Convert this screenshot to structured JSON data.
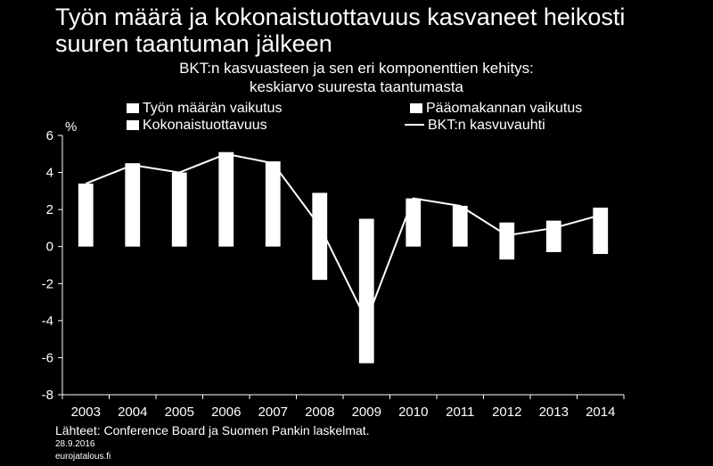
{
  "title_line1": "Työn määrä ja kokonaistuottavuus kasvaneet heikosti",
  "title_line2": "suuren taantuman jälkeen",
  "subtitle_line1": "BKT:n kasvuasteen ja sen eri komponenttien kehitys:",
  "subtitle_line2": "keskiarvo suuresta taantumasta",
  "legend": {
    "labor": "Työn määrän vaikutus",
    "capital": "Pääomakannan vaikutus",
    "tfp": "Kokonaistuottavuus",
    "gdp": "BKT:n kasvuvauhti"
  },
  "footer": {
    "source": "Lähteet: Conference Board ja Suomen Pankin laskelmat.",
    "date": "28.9.2016",
    "site": "eurojatalous.fi"
  },
  "colors": {
    "background": "#000000",
    "foreground": "#ffffff"
  },
  "chart_data": {
    "type": "bar",
    "ylabel": "%",
    "ylim": [
      -8,
      6
    ],
    "yticks": [
      -8,
      -6,
      -4,
      -2,
      0,
      2,
      4,
      6
    ],
    "grid": false,
    "legend_position": "top",
    "categories": [
      "2003",
      "2004",
      "2005",
      "2006",
      "2007",
      "2008",
      "2009",
      "2010",
      "2011",
      "2012",
      "2013",
      "2014"
    ],
    "bar_ranges": [
      [
        0,
        3.4
      ],
      [
        0,
        4.5
      ],
      [
        0,
        4.0
      ],
      [
        0,
        5.1
      ],
      [
        0,
        4.6
      ],
      [
        -1.8,
        2.9
      ],
      [
        -6.3,
        1.5
      ],
      [
        0,
        2.6
      ],
      [
        0,
        2.2
      ],
      [
        -0.7,
        1.3
      ],
      [
        -0.3,
        1.4
      ],
      [
        -0.4,
        2.1
      ]
    ],
    "series": [
      {
        "name": "BKT:n kasvuvauhti",
        "type": "line",
        "values": [
          3.4,
          4.4,
          4.0,
          5.0,
          4.5,
          1.1,
          -4.0,
          2.6,
          2.2,
          0.6,
          1.0,
          1.7
        ]
      }
    ]
  }
}
